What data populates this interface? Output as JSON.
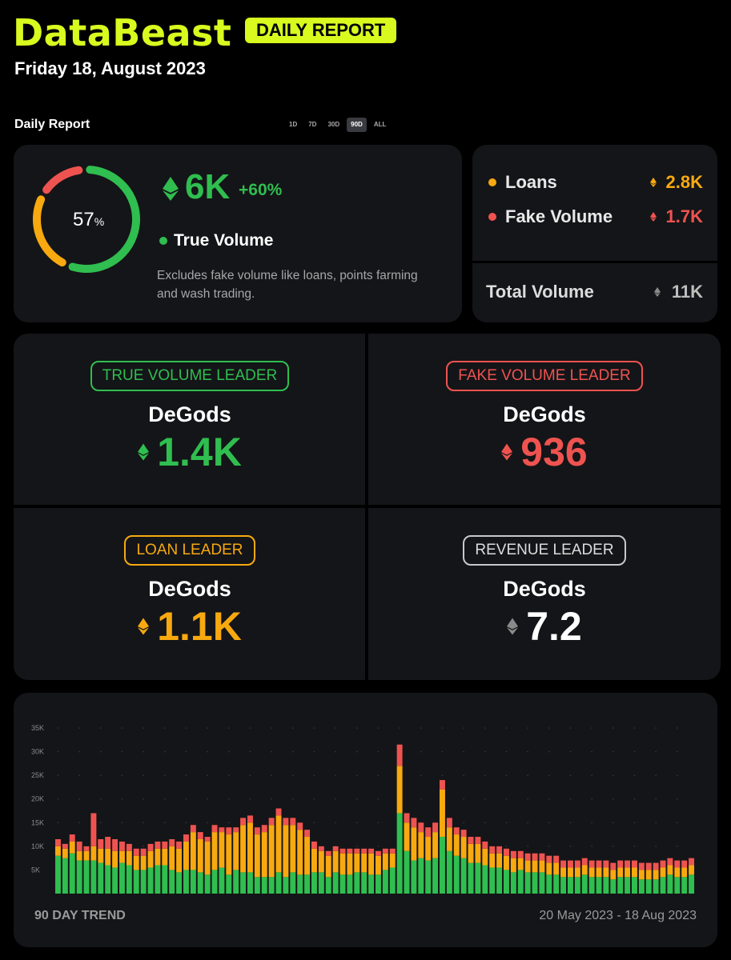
{
  "header": {
    "brand": "DataBeast",
    "badge": "DAILY REPORT",
    "date": "Friday 18, August 2023"
  },
  "section": {
    "title": "Daily Report",
    "ranges": [
      "1D",
      "7D",
      "30D",
      "90D",
      "ALL"
    ],
    "active_range": "90D"
  },
  "true_volume": {
    "percent": "57",
    "percent_sign": "%",
    "percent_value": 57,
    "value": "6K",
    "change": "+60%",
    "label": "True Volume",
    "description": "Excludes fake volume like loans, points farming and wash trading."
  },
  "breakdown": {
    "loans_label": "Loans",
    "loans_value": "2.8K",
    "fake_label": "Fake Volume",
    "fake_value": "1.7K",
    "total_label": "Total Volume",
    "total_value": "11K"
  },
  "leaders": {
    "true": {
      "badge": "TRUE VOLUME LEADER",
      "name": "DeGods",
      "value": "1.4K"
    },
    "fake": {
      "badge": "FAKE VOLUME LEADER",
      "name": "DeGods",
      "value": "936"
    },
    "loan": {
      "badge": "LOAN LEADER",
      "name": "DeGods",
      "value": "1.1K"
    },
    "revenue": {
      "badge": "REVENUE LEADER",
      "name": "DeGods",
      "value": "7.2"
    }
  },
  "colors": {
    "brand": "#d8fa1e",
    "green": "#2fbe4f",
    "orange": "#f7a90f",
    "red": "#ef5350",
    "grey": "#8a8a8a"
  },
  "trend": {
    "label": "90 DAY TREND",
    "date_range": "20 May 2023 - 18 Aug 2023"
  },
  "chart_data": {
    "type": "bar",
    "stacked": true,
    "title": "90 DAY TREND",
    "ylim": [
      0,
      35000
    ],
    "yticks": [
      5000,
      10000,
      15000,
      20000,
      25000,
      30000,
      35000
    ],
    "ytick_labels": [
      "5K",
      "10K",
      "15K",
      "20K",
      "25K",
      "30K",
      "35K"
    ],
    "x_range": "20 May 2023 - 18 Aug 2023",
    "series": [
      {
        "name": "True Volume",
        "color": "#2fbe4f",
        "values": [
          8000,
          7500,
          8500,
          7000,
          7000,
          7000,
          6500,
          6000,
          5500,
          6500,
          6000,
          5000,
          5000,
          5500,
          6000,
          6000,
          5000,
          4500,
          5000,
          5000,
          4500,
          4000,
          5000,
          5500,
          4000,
          5000,
          4500,
          4500,
          3500,
          3500,
          3500,
          4500,
          3500,
          4500,
          4000,
          4000,
          4500,
          4500,
          3500,
          4500,
          4000,
          4000,
          4500,
          4500,
          4000,
          4000,
          5000,
          5500,
          17000,
          9000,
          7000,
          7500,
          7000,
          7500,
          12000,
          9000,
          8000,
          7500,
          6500,
          6500,
          6000,
          5500,
          5500,
          5000,
          4500,
          5000,
          4500,
          4500,
          4500,
          4000,
          4000,
          3500,
          3500,
          3500,
          4000,
          3500,
          3500,
          3500,
          3000,
          3500,
          3500,
          3500,
          3000,
          3000,
          3000,
          3500,
          4000,
          3500,
          3500,
          4000
        ]
      },
      {
        "name": "Loans",
        "color": "#f7a90f",
        "values": [
          2000,
          2000,
          2500,
          2000,
          2000,
          3000,
          3000,
          3500,
          3500,
          2500,
          3000,
          3000,
          3000,
          3500,
          3500,
          3500,
          5000,
          5000,
          6000,
          8000,
          7000,
          7000,
          8000,
          7500,
          8500,
          8000,
          10000,
          10500,
          9000,
          9500,
          11000,
          12000,
          11000,
          10000,
          9500,
          8000,
          5000,
          4500,
          4500,
          4500,
          4500,
          4500,
          4000,
          4000,
          4500,
          4000,
          3500,
          3000,
          10000,
          6000,
          7000,
          5500,
          5000,
          5500,
          10000,
          5000,
          4500,
          4500,
          4000,
          4000,
          3500,
          3000,
          3000,
          3000,
          3000,
          2500,
          2500,
          2500,
          2500,
          2500,
          2500,
          2000,
          2000,
          2000,
          2000,
          2000,
          2000,
          2000,
          2000,
          2000,
          2000,
          2000,
          2000,
          2000,
          2000,
          2000,
          2000,
          2000,
          2000,
          2000
        ]
      },
      {
        "name": "Fake Volume",
        "color": "#ef5350",
        "values": [
          1500,
          1000,
          1500,
          2000,
          1000,
          7000,
          2000,
          2500,
          2500,
          2000,
          1500,
          1500,
          1500,
          1500,
          1500,
          1500,
          1500,
          1500,
          1500,
          1500,
          1500,
          1000,
          1500,
          1000,
          1500,
          1000,
          1500,
          1500,
          1500,
          1500,
          1500,
          1500,
          1500,
          1500,
          1500,
          1500,
          1500,
          1000,
          1000,
          1000,
          1000,
          1000,
          1000,
          1000,
          1000,
          1000,
          1000,
          1000,
          4500,
          2000,
          2000,
          2000,
          2000,
          2000,
          2000,
          2000,
          1500,
          1500,
          1500,
          1500,
          1500,
          1500,
          1500,
          1500,
          1500,
          1500,
          1500,
          1500,
          1500,
          1500,
          1500,
          1500,
          1500,
          1500,
          1500,
          1500,
          1500,
          1500,
          1500,
          1500,
          1500,
          1500,
          1500,
          1500,
          1500,
          1500,
          1500,
          1500,
          1500,
          1500
        ]
      }
    ]
  }
}
